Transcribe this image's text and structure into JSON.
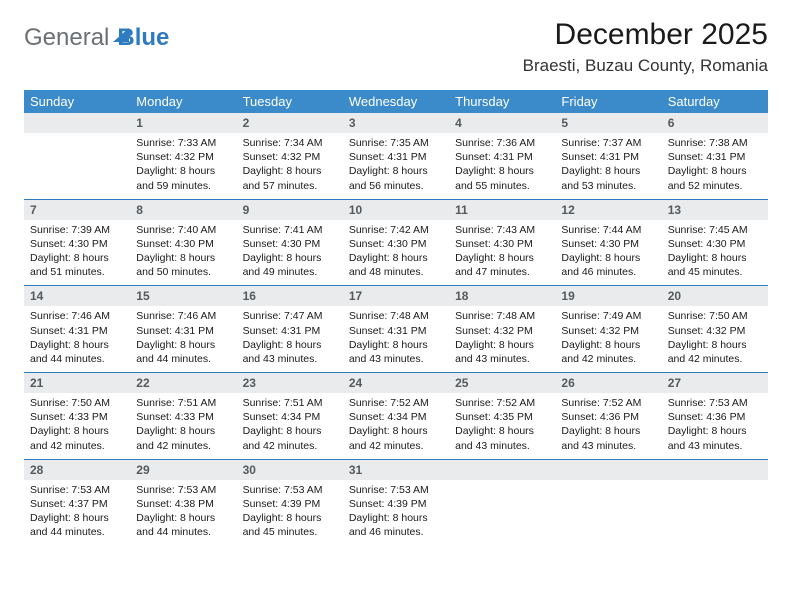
{
  "logo": {
    "general": "General",
    "blue": "Blue"
  },
  "title": "December 2025",
  "location": "Braesti, Buzau County, Romania",
  "colors": {
    "header_bg": "#3b8aca",
    "header_text": "#ffffff",
    "daynum_bg": "#e9ebec",
    "daynum_text": "#555a5e",
    "rule": "#2e7bbf",
    "logo_gray": "#6b7074",
    "logo_blue": "#2e7bbf"
  },
  "weekday_labels": [
    "Sunday",
    "Monday",
    "Tuesday",
    "Wednesday",
    "Thursday",
    "Friday",
    "Saturday"
  ],
  "weeks": [
    [
      {
        "n": "",
        "sunrise": "",
        "sunset": "",
        "daylight": ""
      },
      {
        "n": "1",
        "sunrise": "Sunrise: 7:33 AM",
        "sunset": "Sunset: 4:32 PM",
        "daylight": "Daylight: 8 hours and 59 minutes."
      },
      {
        "n": "2",
        "sunrise": "Sunrise: 7:34 AM",
        "sunset": "Sunset: 4:32 PM",
        "daylight": "Daylight: 8 hours and 57 minutes."
      },
      {
        "n": "3",
        "sunrise": "Sunrise: 7:35 AM",
        "sunset": "Sunset: 4:31 PM",
        "daylight": "Daylight: 8 hours and 56 minutes."
      },
      {
        "n": "4",
        "sunrise": "Sunrise: 7:36 AM",
        "sunset": "Sunset: 4:31 PM",
        "daylight": "Daylight: 8 hours and 55 minutes."
      },
      {
        "n": "5",
        "sunrise": "Sunrise: 7:37 AM",
        "sunset": "Sunset: 4:31 PM",
        "daylight": "Daylight: 8 hours and 53 minutes."
      },
      {
        "n": "6",
        "sunrise": "Sunrise: 7:38 AM",
        "sunset": "Sunset: 4:31 PM",
        "daylight": "Daylight: 8 hours and 52 minutes."
      }
    ],
    [
      {
        "n": "7",
        "sunrise": "Sunrise: 7:39 AM",
        "sunset": "Sunset: 4:30 PM",
        "daylight": "Daylight: 8 hours and 51 minutes."
      },
      {
        "n": "8",
        "sunrise": "Sunrise: 7:40 AM",
        "sunset": "Sunset: 4:30 PM",
        "daylight": "Daylight: 8 hours and 50 minutes."
      },
      {
        "n": "9",
        "sunrise": "Sunrise: 7:41 AM",
        "sunset": "Sunset: 4:30 PM",
        "daylight": "Daylight: 8 hours and 49 minutes."
      },
      {
        "n": "10",
        "sunrise": "Sunrise: 7:42 AM",
        "sunset": "Sunset: 4:30 PM",
        "daylight": "Daylight: 8 hours and 48 minutes."
      },
      {
        "n": "11",
        "sunrise": "Sunrise: 7:43 AM",
        "sunset": "Sunset: 4:30 PM",
        "daylight": "Daylight: 8 hours and 47 minutes."
      },
      {
        "n": "12",
        "sunrise": "Sunrise: 7:44 AM",
        "sunset": "Sunset: 4:30 PM",
        "daylight": "Daylight: 8 hours and 46 minutes."
      },
      {
        "n": "13",
        "sunrise": "Sunrise: 7:45 AM",
        "sunset": "Sunset: 4:30 PM",
        "daylight": "Daylight: 8 hours and 45 minutes."
      }
    ],
    [
      {
        "n": "14",
        "sunrise": "Sunrise: 7:46 AM",
        "sunset": "Sunset: 4:31 PM",
        "daylight": "Daylight: 8 hours and 44 minutes."
      },
      {
        "n": "15",
        "sunrise": "Sunrise: 7:46 AM",
        "sunset": "Sunset: 4:31 PM",
        "daylight": "Daylight: 8 hours and 44 minutes."
      },
      {
        "n": "16",
        "sunrise": "Sunrise: 7:47 AM",
        "sunset": "Sunset: 4:31 PM",
        "daylight": "Daylight: 8 hours and 43 minutes."
      },
      {
        "n": "17",
        "sunrise": "Sunrise: 7:48 AM",
        "sunset": "Sunset: 4:31 PM",
        "daylight": "Daylight: 8 hours and 43 minutes."
      },
      {
        "n": "18",
        "sunrise": "Sunrise: 7:48 AM",
        "sunset": "Sunset: 4:32 PM",
        "daylight": "Daylight: 8 hours and 43 minutes."
      },
      {
        "n": "19",
        "sunrise": "Sunrise: 7:49 AM",
        "sunset": "Sunset: 4:32 PM",
        "daylight": "Daylight: 8 hours and 42 minutes."
      },
      {
        "n": "20",
        "sunrise": "Sunrise: 7:50 AM",
        "sunset": "Sunset: 4:32 PM",
        "daylight": "Daylight: 8 hours and 42 minutes."
      }
    ],
    [
      {
        "n": "21",
        "sunrise": "Sunrise: 7:50 AM",
        "sunset": "Sunset: 4:33 PM",
        "daylight": "Daylight: 8 hours and 42 minutes."
      },
      {
        "n": "22",
        "sunrise": "Sunrise: 7:51 AM",
        "sunset": "Sunset: 4:33 PM",
        "daylight": "Daylight: 8 hours and 42 minutes."
      },
      {
        "n": "23",
        "sunrise": "Sunrise: 7:51 AM",
        "sunset": "Sunset: 4:34 PM",
        "daylight": "Daylight: 8 hours and 42 minutes."
      },
      {
        "n": "24",
        "sunrise": "Sunrise: 7:52 AM",
        "sunset": "Sunset: 4:34 PM",
        "daylight": "Daylight: 8 hours and 42 minutes."
      },
      {
        "n": "25",
        "sunrise": "Sunrise: 7:52 AM",
        "sunset": "Sunset: 4:35 PM",
        "daylight": "Daylight: 8 hours and 43 minutes."
      },
      {
        "n": "26",
        "sunrise": "Sunrise: 7:52 AM",
        "sunset": "Sunset: 4:36 PM",
        "daylight": "Daylight: 8 hours and 43 minutes."
      },
      {
        "n": "27",
        "sunrise": "Sunrise: 7:53 AM",
        "sunset": "Sunset: 4:36 PM",
        "daylight": "Daylight: 8 hours and 43 minutes."
      }
    ],
    [
      {
        "n": "28",
        "sunrise": "Sunrise: 7:53 AM",
        "sunset": "Sunset: 4:37 PM",
        "daylight": "Daylight: 8 hours and 44 minutes."
      },
      {
        "n": "29",
        "sunrise": "Sunrise: 7:53 AM",
        "sunset": "Sunset: 4:38 PM",
        "daylight": "Daylight: 8 hours and 44 minutes."
      },
      {
        "n": "30",
        "sunrise": "Sunrise: 7:53 AM",
        "sunset": "Sunset: 4:39 PM",
        "daylight": "Daylight: 8 hours and 45 minutes."
      },
      {
        "n": "31",
        "sunrise": "Sunrise: 7:53 AM",
        "sunset": "Sunset: 4:39 PM",
        "daylight": "Daylight: 8 hours and 46 minutes."
      },
      {
        "n": "",
        "sunrise": "",
        "sunset": "",
        "daylight": ""
      },
      {
        "n": "",
        "sunrise": "",
        "sunset": "",
        "daylight": ""
      },
      {
        "n": "",
        "sunrise": "",
        "sunset": "",
        "daylight": ""
      }
    ]
  ]
}
